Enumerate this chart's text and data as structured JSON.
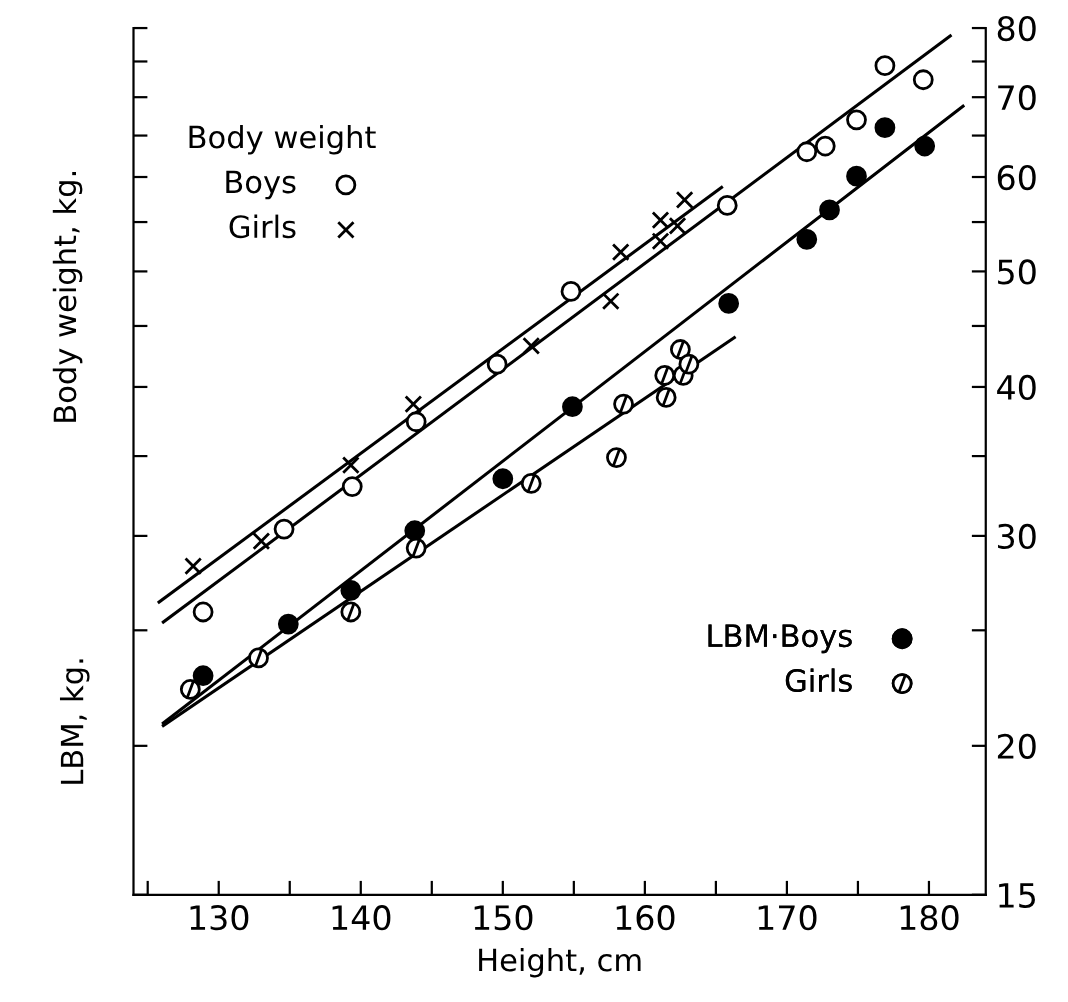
{
  "chart_data": {
    "type": "scatter",
    "xlabel": "Height, cm",
    "ylabel": "Body weight, kg.",
    "annotations": [
      "LBM, kg."
    ],
    "legend_title": "Body weight",
    "legend": [
      "top left",
      "bottom right"
    ],
    "log": "y",
    "grid": false,
    "xlim": [
      124,
      184
    ],
    "xticks": [
      {
        "value": 125,
        "label": null
      },
      130,
      {
        "value": 135,
        "label": null
      },
      140,
      {
        "value": 145,
        "label": null
      },
      150,
      {
        "value": 155,
        "label": null
      },
      160,
      {
        "value": 165,
        "label": null
      },
      170,
      {
        "value": 175,
        "label": null
      },
      180
    ],
    "ylim": [
      15,
      80
    ],
    "yticks": [
      15,
      20,
      {
        "value": 25,
        "label": null
      },
      30,
      {
        "value": 35,
        "label": null
      },
      40,
      {
        "value": 45,
        "label": null
      },
      50,
      {
        "value": 55,
        "label": null
      },
      60,
      {
        "value": 65,
        "label": null
      },
      70,
      {
        "value": 75,
        "label": null
      },
      80
    ],
    "series": [
      {
        "name": "Boys",
        "marker": "open circle",
        "color": "#000000",
        "x": [
          128.9,
          134.6,
          139.4,
          143.9,
          149.6,
          154.8,
          165.8,
          171.4,
          172.7,
          174.9,
          176.9,
          179.6
        ],
        "values": [
          25.9,
          30.4,
          33.0,
          37.4,
          41.8,
          48.1,
          56.8,
          63.0,
          63.7,
          67.0,
          74.4,
          72.4
        ]
      },
      {
        "name": "Girls",
        "marker": "cross",
        "color": "#000000",
        "x": [
          128.2,
          133.0,
          139.3,
          143.7,
          152.0,
          157.6,
          158.3,
          161.1,
          161.1,
          162.3,
          162.8
        ],
        "values": [
          28.3,
          29.7,
          34.4,
          38.7,
          43.3,
          47.2,
          51.9,
          55.2,
          53.0,
          54.6,
          57.4
        ]
      },
      {
        "name": "LBM·Boys",
        "marker": "circle",
        "color": "#000000",
        "x": [
          128.9,
          134.9,
          139.3,
          143.8,
          150.0,
          154.9,
          165.9,
          171.4,
          173.0,
          174.9,
          176.9,
          179.7
        ],
        "values": [
          22.9,
          25.3,
          27.0,
          30.3,
          33.5,
          38.5,
          47.0,
          53.2,
          56.3,
          60.1,
          66.0,
          63.7
        ]
      },
      {
        "name": "Girls",
        "color": "#000000",
        "x": [
          128.0,
          132.8,
          139.3,
          143.9,
          152.0,
          158.0,
          158.5,
          161.5,
          161.4,
          162.5,
          162.7,
          163.1
        ],
        "values": [
          22.3,
          23.7,
          25.9,
          29.3,
          33.2,
          34.9,
          38.7,
          39.2,
          40.9,
          43.0,
          40.9,
          41.8
        ]
      },
      {
        "type": "line",
        "color": "#000000",
        "x": [
          126.1,
          181.5
        ],
        "values": [
          25.4,
          78.8
        ]
      },
      {
        "type": "line",
        "color": "#000000",
        "x": [
          125.8,
          165.4
        ],
        "values": [
          26.4,
          58.8
        ]
      },
      {
        "type": "line",
        "color": "#000000",
        "x": [
          126.1,
          182.4
        ],
        "values": [
          20.9,
          68.8
        ]
      },
      {
        "type": "line",
        "color": "#000000",
        "x": [
          126.1,
          166.3
        ],
        "values": [
          20.8,
          44.0
        ]
      }
    ]
  }
}
